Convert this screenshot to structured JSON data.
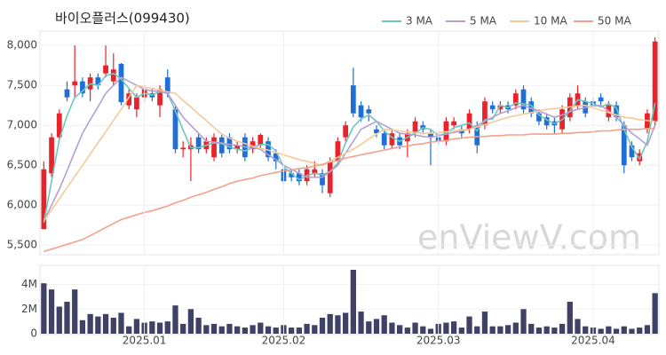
{
  "chart_data": [
    {
      "type": "candlestick",
      "title": "바이오플러스(099430)",
      "watermark": "enViewV.com",
      "up_color": "#e8232b",
      "down_color": "#1f6fd6",
      "grid": true,
      "ylim": [
        5380,
        8180
      ],
      "yticks": [
        {
          "value": 5500,
          "label": "5,500"
        },
        {
          "value": 6000,
          "label": "6,000"
        },
        {
          "value": 6500,
          "label": "6,500"
        },
        {
          "value": 7000,
          "label": "7,000"
        },
        {
          "value": 7500,
          "label": "7,500"
        },
        {
          "value": 8000,
          "label": "8,000"
        }
      ],
      "open": [
        5700,
        6400,
        6850,
        7450,
        7500,
        7550,
        7450,
        7600,
        7650,
        7550,
        7770,
        7250,
        7200,
        7350,
        7400,
        7250,
        7600,
        7200,
        6700,
        6700,
        6850,
        6700,
        6600,
        6850,
        6850,
        6700,
        6850,
        6700,
        6750,
        6800,
        6650,
        6450,
        6400,
        6400,
        6300,
        6400,
        6400,
        6150,
        6550,
        6850,
        7500,
        7250,
        7200,
        6950,
        6900,
        6750,
        6850,
        6800,
        6900,
        7000,
        6900,
        6850,
        6800,
        7000,
        6950,
        6950,
        7000,
        7000,
        7250,
        7200,
        7250,
        7250,
        7450,
        7300,
        7150,
        7100,
        7050,
        6950,
        7100,
        7250,
        7300,
        7300,
        7350,
        7100,
        7250,
        7000,
        6750,
        6550,
        6950,
        7050
      ],
      "high": [
        6550,
        6900,
        7200,
        7550,
        8000,
        7600,
        7650,
        7650,
        8000,
        7900,
        7780,
        7450,
        7400,
        7500,
        7450,
        7500,
        7700,
        7250,
        6800,
        6850,
        6900,
        6850,
        6900,
        6900,
        6900,
        6800,
        6900,
        6850,
        6900,
        6850,
        6700,
        6500,
        6450,
        6450,
        6500,
        6550,
        6450,
        6600,
        6850,
        7050,
        7720,
        7300,
        7250,
        7000,
        6950,
        6950,
        6900,
        6950,
        7100,
        7050,
        6950,
        6900,
        7100,
        7100,
        7000,
        7200,
        7050,
        7350,
        7300,
        7300,
        7300,
        7450,
        7500,
        7350,
        7200,
        7150,
        7100,
        7250,
        7400,
        7500,
        7350,
        7350,
        7400,
        7300,
        7300,
        7050,
        6800,
        6700,
        7200,
        8100
      ],
      "low": [
        5700,
        6350,
        6800,
        7300,
        7350,
        7350,
        7300,
        7450,
        7600,
        7500,
        7250,
        7200,
        7100,
        7300,
        7300,
        7100,
        7350,
        6650,
        6600,
        6300,
        6650,
        6650,
        6550,
        6600,
        6650,
        6650,
        6550,
        6650,
        6700,
        6550,
        6450,
        6250,
        6300,
        6250,
        6250,
        6350,
        6150,
        6100,
        6500,
        6800,
        7100,
        7050,
        7050,
        6850,
        6700,
        6700,
        6700,
        6600,
        6850,
        6900,
        6500,
        6750,
        6750,
        6950,
        6850,
        6900,
        6650,
        6950,
        7150,
        7150,
        7150,
        7200,
        7150,
        7100,
        7000,
        6950,
        6900,
        6900,
        7050,
        7200,
        7100,
        7200,
        7250,
        7050,
        7050,
        6400,
        6550,
        6500,
        6900,
        7000
      ],
      "close": [
        6450,
        6850,
        7150,
        7350,
        7550,
        7400,
        7600,
        7500,
        7750,
        7700,
        7290,
        7400,
        7350,
        7450,
        7350,
        7450,
        7400,
        6700,
        6720,
        6750,
        6700,
        6800,
        6850,
        6650,
        6700,
        6750,
        6600,
        6800,
        6880,
        6600,
        6550,
        6300,
        6350,
        6300,
        6450,
        6450,
        6250,
        6550,
        6800,
        7000,
        7150,
        7100,
        7150,
        6900,
        6750,
        6900,
        6750,
        6900,
        7050,
        6950,
        6850,
        6800,
        7050,
        7050,
        6900,
        7150,
        6750,
        7300,
        7200,
        7250,
        7200,
        7400,
        7200,
        7150,
        7050,
        7000,
        7000,
        7200,
        7350,
        7400,
        7150,
        7250,
        7300,
        7250,
        7100,
        6500,
        6600,
        6650,
        7150,
        8050
      ],
      "series": [
        {
          "name": "3 MA",
          "color": "#6cc7c0",
          "values": [
            5780,
            6300,
            6820,
            7120,
            7350,
            7430,
            7520,
            7500,
            7620,
            7650,
            7580,
            7460,
            7350,
            7400,
            7380,
            7420,
            7400,
            7180,
            6940,
            6720,
            6720,
            6750,
            6780,
            6770,
            6730,
            6700,
            6680,
            6720,
            6760,
            6760,
            6680,
            6480,
            6400,
            6320,
            6370,
            6400,
            6380,
            6420,
            6530,
            6780,
            6980,
            7080,
            7130,
            7050,
            6930,
            6850,
            6800,
            6850,
            6900,
            6970,
            6950,
            6870,
            6900,
            6970,
            7000,
            7030,
            6930,
            7070,
            7080,
            7250,
            7220,
            7280,
            7270,
            7250,
            7130,
            7070,
            7020,
            7070,
            7180,
            7320,
            7300,
            7270,
            7230,
            7270,
            7220,
            6950,
            6730,
            6580,
            6800,
            7280
          ]
        },
        {
          "name": "5 MA",
          "color": "#b39fd0",
          "values": [
            5800,
            6000,
            6200,
            6430,
            6670,
            6900,
            7070,
            7230,
            7400,
            7500,
            7600,
            7550,
            7500,
            7450,
            7430,
            7420,
            7400,
            7250,
            7100,
            7000,
            6900,
            6800,
            6790,
            6780,
            6760,
            6750,
            6730,
            6720,
            6700,
            6630,
            6570,
            6500,
            6450,
            6400,
            6350,
            6350,
            6350,
            6420,
            6500,
            6650,
            6800,
            6950,
            7000,
            7050,
            7000,
            6950,
            6900,
            6890,
            6880,
            6860,
            6850,
            6870,
            6890,
            6910,
            6930,
            6950,
            7000,
            7050,
            7100,
            7150,
            7180,
            7220,
            7250,
            7210,
            7180,
            7140,
            7100,
            7130,
            7170,
            7200,
            7220,
            7240,
            7250,
            7180,
            7100,
            7000,
            6900,
            6830,
            6750,
            7000
          ]
        },
        {
          "name": "10 MA",
          "color": "#f5c99a",
          "values": [
            5800,
            5940,
            6080,
            6220,
            6360,
            6500,
            6640,
            6780,
            6920,
            7060,
            7200,
            7350,
            7500,
            7480,
            7460,
            7440,
            7420,
            7400,
            7310,
            7230,
            7140,
            7060,
            6970,
            6890,
            6840,
            6800,
            6770,
            6740,
            6710,
            6690,
            6660,
            6630,
            6600,
            6570,
            6550,
            6520,
            6500,
            6550,
            6600,
            6650,
            6700,
            6760,
            6830,
            6890,
            6950,
            6940,
            6930,
            6920,
            6910,
            6900,
            6900,
            6910,
            6920,
            6930,
            6940,
            6950,
            6980,
            7010,
            7040,
            7070,
            7100,
            7120,
            7140,
            7160,
            7180,
            7200,
            7210,
            7220,
            7230,
            7240,
            7250,
            7220,
            7190,
            7160,
            7130,
            7100,
            7090,
            7070,
            7060,
            7050
          ]
        },
        {
          "name": "50 MA",
          "color": "#f4a08a",
          "values": [
            5420,
            5450,
            5480,
            5510,
            5540,
            5570,
            5620,
            5670,
            5720,
            5770,
            5820,
            5850,
            5880,
            5910,
            5930,
            5960,
            5990,
            6030,
            6060,
            6100,
            6130,
            6160,
            6200,
            6230,
            6270,
            6300,
            6320,
            6340,
            6370,
            6390,
            6410,
            6430,
            6440,
            6460,
            6470,
            6490,
            6510,
            6540,
            6560,
            6590,
            6610,
            6630,
            6650,
            6670,
            6690,
            6710,
            6730,
            6740,
            6760,
            6770,
            6790,
            6800,
            6810,
            6830,
            6840,
            6850,
            6860,
            6860,
            6870,
            6870,
            6880,
            6880,
            6880,
            6890,
            6890,
            6890,
            6890,
            6900,
            6900,
            6910,
            6910,
            6920,
            6930,
            6930,
            6940,
            6950,
            6950,
            6950,
            6960,
            6960
          ]
        }
      ]
    },
    {
      "type": "bar",
      "color": "#3f4266",
      "grid": true,
      "ylim": [
        0,
        5560000
      ],
      "yticks": [
        0,
        {
          "value": 2000000,
          "label": "2M"
        },
        {
          "value": 4000000,
          "label": "4M"
        }
      ],
      "categories": [
        null,
        null,
        null,
        null,
        null,
        null,
        null,
        null,
        null,
        null,
        null,
        null,
        null,
        "2025.01",
        null,
        null,
        null,
        null,
        null,
        null,
        null,
        null,
        null,
        null,
        null,
        null,
        null,
        null,
        null,
        null,
        null,
        "2025.02",
        null,
        null,
        null,
        null,
        null,
        null,
        null,
        null,
        null,
        null,
        null,
        null,
        null,
        null,
        null,
        null,
        null,
        null,
        null,
        "2025.03",
        null,
        null,
        null,
        null,
        null,
        null,
        null,
        null,
        null,
        null,
        null,
        null,
        null,
        null,
        null,
        null,
        null,
        null,
        null,
        "2025.04",
        null,
        null,
        null,
        null,
        null,
        null,
        null,
        null
      ],
      "values": [
        4100000,
        3600000,
        2200000,
        2600000,
        3600000,
        1100000,
        1600000,
        1400000,
        1600000,
        1300000,
        1700000,
        600000,
        1200000,
        900000,
        1000000,
        900000,
        1000000,
        2300000,
        800000,
        2000000,
        1300000,
        700000,
        800000,
        600000,
        800000,
        600000,
        500000,
        700000,
        900000,
        600000,
        500000,
        700000,
        500000,
        500000,
        800000,
        700000,
        1300000,
        1600000,
        1500000,
        1700000,
        5200000,
        1800000,
        1000000,
        1200000,
        1500000,
        900000,
        700000,
        500000,
        900000,
        600000,
        400000,
        800000,
        900000,
        1000000,
        500000,
        1400000,
        600000,
        1800000,
        600000,
        600000,
        700000,
        900000,
        2000000,
        800000,
        500000,
        600000,
        500000,
        800000,
        2600000,
        1200000,
        600000,
        500000,
        400000,
        600000,
        400000,
        600000,
        400000,
        500000,
        700000,
        3300000
      ]
    }
  ]
}
